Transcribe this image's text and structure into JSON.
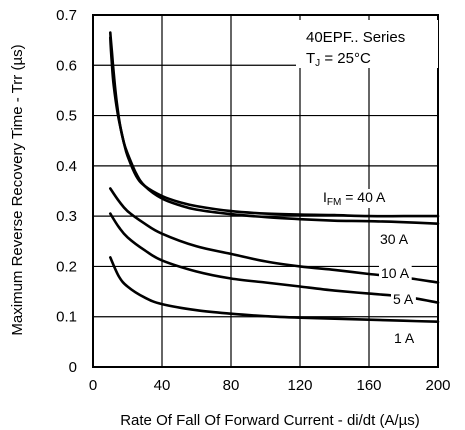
{
  "chart_data": {
    "type": "line",
    "title": "",
    "xlabel": "Rate Of Fall Of Forward Current - di/dt (A/µs)",
    "ylabel": "Maximum Reverse Recovery Time - Trr (µs)",
    "xlim": [
      0,
      200
    ],
    "ylim": [
      0,
      0.7
    ],
    "x_ticks": [
      0,
      40,
      80,
      120,
      160,
      200
    ],
    "y_ticks": [
      0,
      0.1,
      0.2,
      0.3,
      0.4,
      0.5,
      0.6,
      0.7
    ],
    "x_tick_labels": [
      "0",
      "40",
      "80",
      "120",
      "160",
      "200"
    ],
    "y_tick_labels": [
      "0",
      "0.1",
      "0.2",
      "0.3",
      "0.4",
      "0.5",
      "0.6",
      "0.7"
    ],
    "grid": true,
    "annotation": {
      "series_line": "40EPF.. Series",
      "temp_prefix": "T",
      "temp_sub": "J",
      "temp_value": " = 25°C"
    },
    "series": [
      {
        "name": "IFM = 40 A (upper)",
        "x": [
          10,
          11,
          12,
          13,
          14,
          16,
          18,
          20,
          25,
          30,
          40,
          50,
          60,
          80,
          100,
          120,
          140,
          160,
          180,
          200
        ],
        "y": [
          0.665,
          0.625,
          0.585,
          0.55,
          0.52,
          0.475,
          0.445,
          0.42,
          0.38,
          0.36,
          0.34,
          0.328,
          0.32,
          0.31,
          0.305,
          0.303,
          0.302,
          0.3,
          0.3,
          0.3
        ]
      },
      {
        "name": "IFM = 40 A (lower)",
        "x": [
          10,
          11,
          12,
          14,
          16,
          18,
          20,
          25,
          30,
          40,
          50,
          60,
          80,
          100,
          120,
          140,
          160,
          180,
          200
        ],
        "y": [
          0.655,
          0.6,
          0.56,
          0.51,
          0.475,
          0.445,
          0.425,
          0.385,
          0.36,
          0.335,
          0.322,
          0.313,
          0.304,
          0.298,
          0.294,
          0.291,
          0.29,
          0.288,
          0.285
        ]
      },
      {
        "name": "30 A",
        "x": [
          10,
          15,
          20,
          30,
          40,
          60,
          80,
          100,
          120,
          140,
          160,
          180,
          200
        ],
        "y": [
          0.355,
          0.33,
          0.31,
          0.285,
          0.265,
          0.24,
          0.225,
          0.21,
          0.2,
          0.193,
          0.185,
          0.178,
          0.168
        ]
      },
      {
        "name": "10 A",
        "x": [
          10,
          15,
          20,
          30,
          40,
          60,
          80,
          100,
          120,
          140,
          160,
          180,
          200
        ],
        "y": [
          0.305,
          0.278,
          0.258,
          0.232,
          0.212,
          0.19,
          0.176,
          0.168,
          0.16,
          0.152,
          0.146,
          0.14,
          0.128
        ]
      },
      {
        "name": "5 A",
        "x": [
          10,
          15,
          20,
          30,
          40,
          60,
          80,
          100,
          120,
          140,
          160,
          180,
          200
        ],
        "y": [
          0.218,
          0.18,
          0.16,
          0.138,
          0.125,
          0.113,
          0.106,
          0.101,
          0.098,
          0.096,
          0.094,
          0.092,
          0.09
        ]
      }
    ],
    "curve_labels": [
      {
        "prefix": "I",
        "sub": "FM",
        "value": " = 40 A"
      },
      {
        "value": "30 A"
      },
      {
        "value": "10 A"
      },
      {
        "value": "5 A"
      },
      {
        "value": "1 A"
      }
    ]
  }
}
